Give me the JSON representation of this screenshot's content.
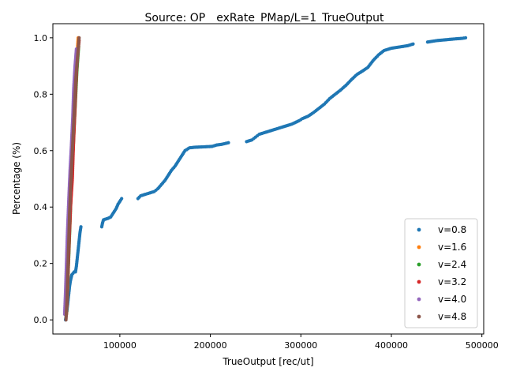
{
  "chart_data": {
    "type": "scatter",
    "title": "Source: OP__exRate_PMap/L=1_TrueOutput",
    "xlabel": "TrueOutput [rec/ut]",
    "ylabel": "Percentage (%)",
    "xlim": [
      26000,
      502000
    ],
    "ylim": [
      -0.05,
      1.05
    ],
    "xticks": [
      100000,
      200000,
      300000,
      400000,
      500000
    ],
    "xtick_labels": [
      "100000",
      "200000",
      "300000",
      "400000",
      "500000"
    ],
    "yticks": [
      0.0,
      0.2,
      0.4,
      0.6,
      0.8,
      1.0
    ],
    "ytick_labels": [
      "0.0",
      "0.2",
      "0.4",
      "0.6",
      "0.8",
      "1.0"
    ],
    "grid": false,
    "legend_position": "lower-right",
    "series": [
      {
        "name": "v=0.8",
        "color": "#1f77b4",
        "points": [
          [
            40000,
            0.0
          ],
          [
            41500,
            0.03
          ],
          [
            42500,
            0.06
          ],
          [
            43500,
            0.09
          ],
          [
            44500,
            0.12
          ],
          [
            45500,
            0.14
          ],
          [
            47000,
            0.16
          ],
          [
            49500,
            0.17
          ],
          [
            51000,
            0.17
          ],
          [
            52000,
            0.19
          ],
          [
            53000,
            0.22
          ],
          [
            54000,
            0.25
          ],
          [
            55000,
            0.28
          ],
          [
            56000,
            0.31
          ],
          [
            57000,
            0.33
          ],
          [
            80000,
            0.33
          ],
          [
            81000,
            0.345
          ],
          [
            82000,
            0.355
          ],
          [
            87000,
            0.36
          ],
          [
            90000,
            0.365
          ],
          [
            93000,
            0.38
          ],
          [
            96000,
            0.395
          ],
          [
            98000,
            0.41
          ],
          [
            100000,
            0.42
          ],
          [
            102000,
            0.43
          ],
          [
            120000,
            0.43
          ],
          [
            123000,
            0.44
          ],
          [
            128000,
            0.445
          ],
          [
            133000,
            0.45
          ],
          [
            138000,
            0.455
          ],
          [
            142000,
            0.465
          ],
          [
            146000,
            0.48
          ],
          [
            150000,
            0.495
          ],
          [
            153000,
            0.51
          ],
          [
            157000,
            0.53
          ],
          [
            161000,
            0.545
          ],
          [
            165000,
            0.565
          ],
          [
            169000,
            0.585
          ],
          [
            172000,
            0.6
          ],
          [
            177000,
            0.61
          ],
          [
            183000,
            0.612
          ],
          [
            190000,
            0.613
          ],
          [
            202000,
            0.615
          ],
          [
            207000,
            0.62
          ],
          [
            212000,
            0.622
          ],
          [
            220000,
            0.628
          ],
          [
            240000,
            0.632
          ],
          [
            246000,
            0.638
          ],
          [
            250000,
            0.648
          ],
          [
            254000,
            0.658
          ],
          [
            260000,
            0.664
          ],
          [
            266000,
            0.67
          ],
          [
            272000,
            0.676
          ],
          [
            280000,
            0.684
          ],
          [
            290000,
            0.694
          ],
          [
            298000,
            0.706
          ],
          [
            302000,
            0.714
          ],
          [
            308000,
            0.722
          ],
          [
            314000,
            0.735
          ],
          [
            320000,
            0.75
          ],
          [
            326000,
            0.765
          ],
          [
            332000,
            0.785
          ],
          [
            338000,
            0.8
          ],
          [
            344000,
            0.815
          ],
          [
            350000,
            0.832
          ],
          [
            356000,
            0.852
          ],
          [
            362000,
            0.87
          ],
          [
            368000,
            0.882
          ],
          [
            374000,
            0.895
          ],
          [
            380000,
            0.92
          ],
          [
            386000,
            0.94
          ],
          [
            392000,
            0.955
          ],
          [
            400000,
            0.963
          ],
          [
            410000,
            0.968
          ],
          [
            418000,
            0.972
          ],
          [
            424000,
            0.978
          ],
          [
            440000,
            0.985
          ],
          [
            450000,
            0.99
          ],
          [
            460000,
            0.993
          ],
          [
            470000,
            0.996
          ],
          [
            478000,
            0.998
          ],
          [
            482000,
            1.0
          ]
        ]
      },
      {
        "name": "v=1.6",
        "color": "#ff7f0e",
        "points": [
          [
            41000,
            0.02
          ],
          [
            42500,
            0.12
          ],
          [
            43500,
            0.25
          ],
          [
            44500,
            0.38
          ],
          [
            46000,
            0.5
          ],
          [
            47500,
            0.6
          ],
          [
            49000,
            0.7
          ],
          [
            50500,
            0.8
          ],
          [
            52000,
            0.9
          ],
          [
            54000,
            1.0
          ]
        ]
      },
      {
        "name": "v=2.4",
        "color": "#2ca02c",
        "points": [
          [
            41000,
            0.03
          ],
          [
            42000,
            0.1
          ],
          [
            43500,
            0.22
          ],
          [
            45000,
            0.35
          ],
          [
            46500,
            0.48
          ],
          [
            48000,
            0.58
          ],
          [
            49500,
            0.68
          ],
          [
            51000,
            0.78
          ],
          [
            52500,
            0.88
          ],
          [
            54500,
            0.97
          ]
        ]
      },
      {
        "name": "v=3.2",
        "color": "#d62728",
        "points": [
          [
            41500,
            0.05
          ],
          [
            42500,
            0.15
          ],
          [
            44000,
            0.28
          ],
          [
            45500,
            0.4
          ],
          [
            47500,
            0.5
          ],
          [
            48500,
            0.6
          ],
          [
            50000,
            0.72
          ],
          [
            51500,
            0.84
          ],
          [
            53000,
            0.93
          ],
          [
            55000,
            0.99
          ]
        ]
      },
      {
        "name": "v=4.0",
        "color": "#9467bd",
        "points": [
          [
            39000,
            0.02
          ],
          [
            40000,
            0.1
          ],
          [
            41000,
            0.2
          ],
          [
            42000,
            0.3
          ],
          [
            43500,
            0.42
          ],
          [
            45000,
            0.53
          ],
          [
            46500,
            0.62
          ],
          [
            48000,
            0.72
          ],
          [
            49000,
            0.82
          ],
          [
            50500,
            0.9
          ],
          [
            52000,
            0.96
          ]
        ]
      },
      {
        "name": "v=4.8",
        "color": "#8c564b",
        "points": [
          [
            40500,
            0.0
          ],
          [
            41500,
            0.06
          ],
          [
            42500,
            0.16
          ],
          [
            43500,
            0.27
          ],
          [
            44500,
            0.38
          ],
          [
            45500,
            0.46
          ],
          [
            47000,
            0.56
          ],
          [
            48500,
            0.66
          ],
          [
            50000,
            0.76
          ],
          [
            51500,
            0.86
          ],
          [
            53500,
            0.94
          ],
          [
            55000,
            1.0
          ]
        ]
      }
    ]
  }
}
